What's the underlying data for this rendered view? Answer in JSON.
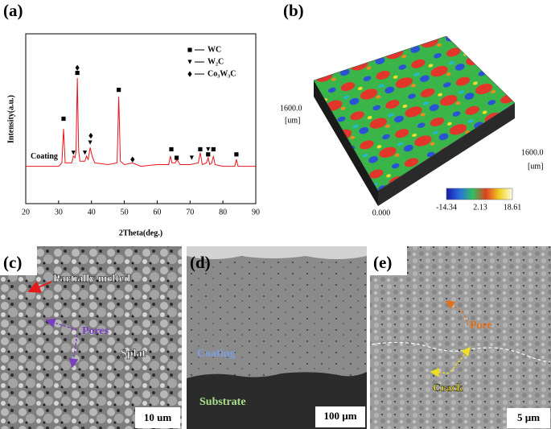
{
  "panel_labels": [
    "(a)",
    "(b)",
    "(c)",
    "(d)",
    "(e)"
  ],
  "chart_data": {
    "type": "line",
    "xlabel": "2Theta(deg.)",
    "ylabel": "Intensity(a.u.)",
    "xlim": [
      20,
      90
    ],
    "xticks": [
      20,
      30,
      40,
      50,
      60,
      70,
      80,
      90
    ],
    "ylim": [
      0,
      100
    ],
    "legend": "upper right",
    "series": [
      {
        "name": "Coating",
        "color": "#e8141a",
        "x": [
          20,
          25,
          30,
          31,
          31.5,
          32,
          34,
          34.5,
          35,
          35.3,
          35.7,
          36.1,
          36.5,
          38,
          38.5,
          39,
          39.6,
          40.2,
          41,
          45,
          47.8,
          48.3,
          48.8,
          50,
          52.5,
          55,
          60,
          63.5,
          64,
          64.5,
          65.5,
          66,
          67,
          70,
          72.5,
          73.1,
          73.7,
          75,
          75.5,
          76,
          76.6,
          77.1,
          77.6,
          80,
          83.6,
          84.1,
          84.6,
          90
        ],
        "values": [
          22,
          22,
          22,
          24,
          44,
          24,
          24,
          28,
          27,
          31,
          74,
          31,
          25,
          25,
          28,
          26,
          33,
          28,
          24,
          23,
          24,
          63,
          25,
          23,
          24,
          22,
          23,
          23,
          28,
          24,
          24,
          26,
          23,
          23,
          24,
          30,
          23,
          24,
          27,
          23,
          24,
          28,
          23,
          22,
          22,
          26,
          22,
          22
        ]
      },
      {
        "name": "WC",
        "marker": "square",
        "color": "#000000",
        "x": [
          31.5,
          35.7,
          48.3,
          64.3,
          65.9,
          73.1,
          75.5,
          77.1,
          84.1
        ],
        "values": [
          50,
          77,
          67,
          32,
          27,
          32,
          29,
          32,
          29
        ]
      },
      {
        "name": "W₂C",
        "marker": "triangle-down",
        "color": "#000000",
        "x": [
          34.5,
          38,
          39.6,
          70.5,
          75.5
        ],
        "values": [
          30,
          30,
          36,
          27,
          32
        ]
      },
      {
        "name": "Co₃W₃C",
        "marker": "diamond",
        "color": "#000000",
        "x": [
          35.7,
          39.8,
          52.5
        ],
        "values": [
          80,
          40,
          26
        ]
      }
    ]
  },
  "surface_map": {
    "x_extent": "1600.0",
    "x_unit": "[um]",
    "y_extent": "1600.0",
    "y_unit": "[um]",
    "origin": "0.000",
    "colorbar_labels": [
      "-14.34",
      "2.13",
      "18.61"
    ]
  },
  "sem_c": {
    "annotations": [
      "Partially melted",
      "Pores",
      "Splat"
    ],
    "scale_bar": "10 um"
  },
  "sem_d": {
    "annotations": [
      "Coating",
      "Substrate"
    ],
    "scale_bar": "100 µm"
  },
  "sem_e": {
    "annotations": [
      "Pore",
      "Crack"
    ],
    "scale_bar": "5 µm"
  }
}
